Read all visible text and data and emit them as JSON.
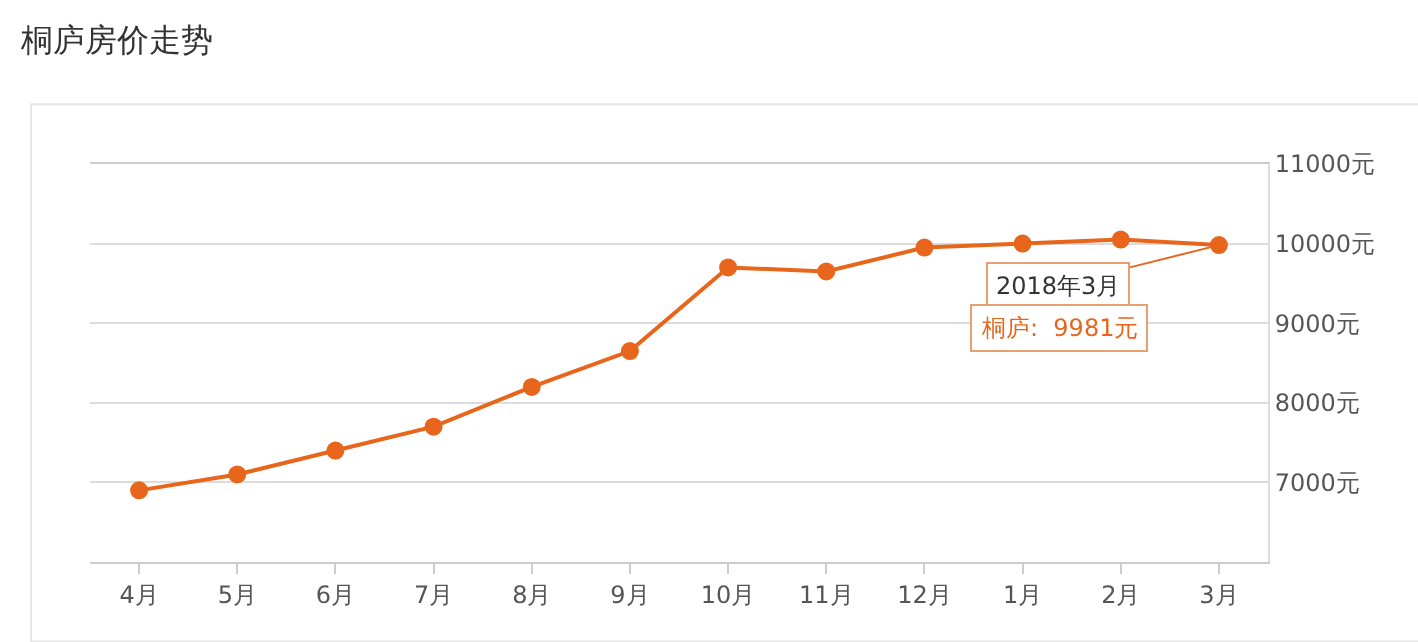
{
  "chart_data": {
    "type": "line",
    "title": "桐庐房价走势",
    "categories": [
      "4月",
      "5月",
      "6月",
      "7月",
      "8月",
      "9月",
      "10月",
      "11月",
      "12月",
      "1月",
      "2月",
      "3月"
    ],
    "series": [
      {
        "color": "#e8661c",
        "values": [
          6900,
          7100,
          7400,
          7700,
          8200,
          8650,
          9700,
          9650,
          9950,
          10000,
          10050,
          9981
        ]
      }
    ],
    "ylim": [
      6000,
      11000
    ],
    "yticks": [
      {
        "value": 7000,
        "label": "7000元"
      },
      {
        "value": 8000,
        "label": "8000元"
      },
      {
        "value": 9000,
        "label": "9000元"
      },
      {
        "value": 10000,
        "label": "10000元"
      },
      {
        "value": 11000,
        "label": "11000元"
      }
    ],
    "grid": "y",
    "marker": "circle",
    "line_style": "solid",
    "annotations": [
      {
        "text": "2018年3月",
        "x": "3月",
        "y": 9981
      },
      "桐庐:  9981元"
    ]
  }
}
